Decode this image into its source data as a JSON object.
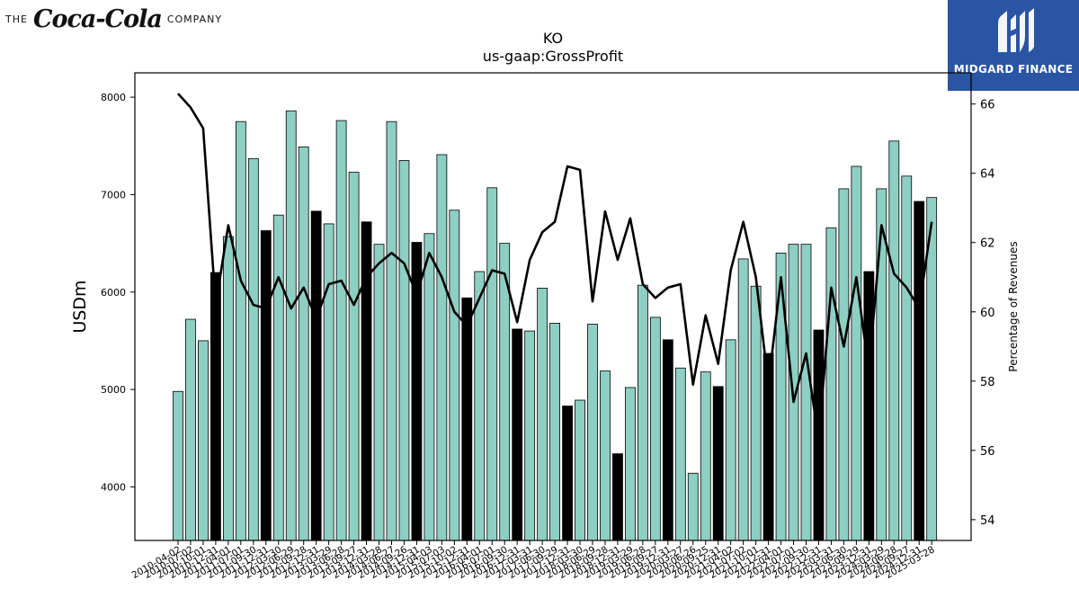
{
  "logo_left": {
    "prefix": "THE",
    "script": "Coca-Cola",
    "suffix": "COMPANY"
  },
  "logo_right": {
    "brand": "MIDGARD FINANCE",
    "background": "#2a55a4"
  },
  "colors": {
    "bar_default": "#8ecfc3",
    "bar_highlight": "#000000",
    "line": "#000000"
  },
  "chart_data": {
    "type": "bar",
    "title": "KO",
    "subtitle": "us-gaap:GrossProfit",
    "ylabel": "USDm",
    "y2label": "Percentage of Revenues",
    "ylim": [
      3450,
      8250
    ],
    "y2lim": [
      53.4,
      66.9
    ],
    "yticks": [
      4000,
      5000,
      6000,
      7000,
      8000
    ],
    "y2ticks": [
      54,
      56,
      58,
      60,
      62,
      64,
      66
    ],
    "grid": false,
    "categories": [
      "2010-04-02",
      "2010-07-02",
      "2010-10-01",
      "2010-12-31",
      "2011-04-01",
      "2011-07-01",
      "2011-09-30",
      "2011-12-31",
      "2012-03-30",
      "2012-06-29",
      "2012-09-28",
      "2012-12-31",
      "2013-03-29",
      "2013-06-28",
      "2013-09-27",
      "2013-12-31",
      "2014-03-28",
      "2014-06-27",
      "2014-09-26",
      "2014-12-31",
      "2015-04-03",
      "2015-07-03",
      "2015-10-02",
      "2015-12-31",
      "2016-04-01",
      "2016-07-01",
      "2016-09-30",
      "2016-12-31",
      "2017-03-31",
      "2017-06-30",
      "2017-09-29",
      "2017-12-31",
      "2018-03-30",
      "2018-06-29",
      "2018-09-28",
      "2018-12-31",
      "2019-03-29",
      "2019-06-28",
      "2019-09-27",
      "2019-12-31",
      "2020-03-27",
      "2020-06-26",
      "2020-09-25",
      "2020-12-31",
      "2021-04-02",
      "2021-07-02",
      "2021-10-01",
      "2021-12-31",
      "2022-04-01",
      "2022-07-01",
      "2022-09-30",
      "2022-12-31",
      "2023-03-31",
      "2023-06-30",
      "2023-09-29",
      "2023-12-31",
      "2024-03-29",
      "2024-06-28",
      "2024-09-27",
      "2024-12-31",
      "2025-03-28"
    ],
    "xtick_labels": [
      "2010-04-02",
      "2010-07-02",
      "2010-10-01",
      "2010-12-31",
      "2011-04-01",
      "2011-07-01",
      "2011-09-30",
      "2011-12-31",
      "2012-03-30",
      "2012-06-29",
      "2012-09-28",
      "2012-12-31",
      "2013-03-29",
      "2013-06-28",
      "2013-09-27",
      "2013-12-31",
      "2014-03-28",
      "2014-06-27",
      "2014-09-26",
      "2014-12-31",
      "2015-04-03",
      "2015-07-03",
      "2015-10-02",
      "2015-12-31",
      "2016-04-01",
      "2016-07-01",
      "2016-09-30",
      "2016-12-31",
      "2017-03-31",
      "2017-06-30",
      "2017-09-29",
      "2017-12-31",
      "2018-03-30",
      "2018-06-29",
      "2018-09-28",
      "2018-12-31",
      "2019-03-29",
      "2019-06-28",
      "2019-09-27",
      "2019-12-31",
      "2020-03-27",
      "2020-06-26",
      "2020-09-25",
      "2020-12-31",
      "2021-04-02",
      "2021-07-02",
      "2021-10-01",
      "2021-12-31",
      "2022-04-01",
      "2022-07-01",
      "2022-09-30",
      "2022-12-31",
      "2023-03-31",
      "2023-06-30",
      "2023-09-29",
      "2023-12-31",
      "2024-03-29",
      "2024-06-28",
      "2024-09-27",
      "2024-12-31",
      "2025-03-28"
    ],
    "series": [
      {
        "type": "bar",
        "values": [
          4980,
          5720,
          5500,
          6200,
          6570,
          7750,
          7370,
          6630,
          6790,
          7860,
          7490,
          6830,
          6700,
          7760,
          7230,
          6720,
          6490,
          7750,
          7350,
          6510,
          6600,
          7410,
          6840,
          5940,
          6210,
          7070,
          6500,
          5620,
          5600,
          6040,
          5680,
          4830,
          4890,
          5670,
          5190,
          4340,
          5020,
          6070,
          5740,
          5510,
          5220,
          4140,
          5180,
          5030,
          5510,
          6340,
          6060,
          5370,
          6400,
          6490,
          6490,
          5610,
          6660,
          7060,
          7290,
          6210,
          7060,
          7550,
          7190,
          6930,
          6970
        ],
        "highlight": [
          false,
          false,
          false,
          true,
          false,
          false,
          false,
          true,
          false,
          false,
          false,
          true,
          false,
          false,
          false,
          true,
          false,
          false,
          false,
          true,
          false,
          false,
          false,
          true,
          false,
          false,
          false,
          true,
          false,
          false,
          false,
          true,
          false,
          false,
          false,
          true,
          false,
          false,
          false,
          true,
          false,
          false,
          false,
          true,
          false,
          false,
          false,
          true,
          false,
          false,
          false,
          true,
          false,
          false,
          false,
          true,
          false,
          false,
          false,
          true,
          false
        ]
      },
      {
        "type": "line",
        "axis": "right",
        "values": [
          66.3,
          65.9,
          65.3,
          60.2,
          62.5,
          60.9,
          60.2,
          60.1,
          61.0,
          60.1,
          60.7,
          59.8,
          60.8,
          60.9,
          60.2,
          61.0,
          61.4,
          61.7,
          61.4,
          60.5,
          61.7,
          61.0,
          60.0,
          59.6,
          60.4,
          61.2,
          61.1,
          59.7,
          61.5,
          62.3,
          62.6,
          64.2,
          64.1,
          60.3,
          62.9,
          61.5,
          62.7,
          60.8,
          60.4,
          60.7,
          60.8,
          57.9,
          59.9,
          58.5,
          61.2,
          62.6,
          61.0,
          57.9,
          61.0,
          57.4,
          58.8,
          56.3,
          60.7,
          59.0,
          61.0,
          58.3,
          62.5,
          61.1,
          60.7,
          60.1,
          62.6
        ]
      }
    ]
  }
}
